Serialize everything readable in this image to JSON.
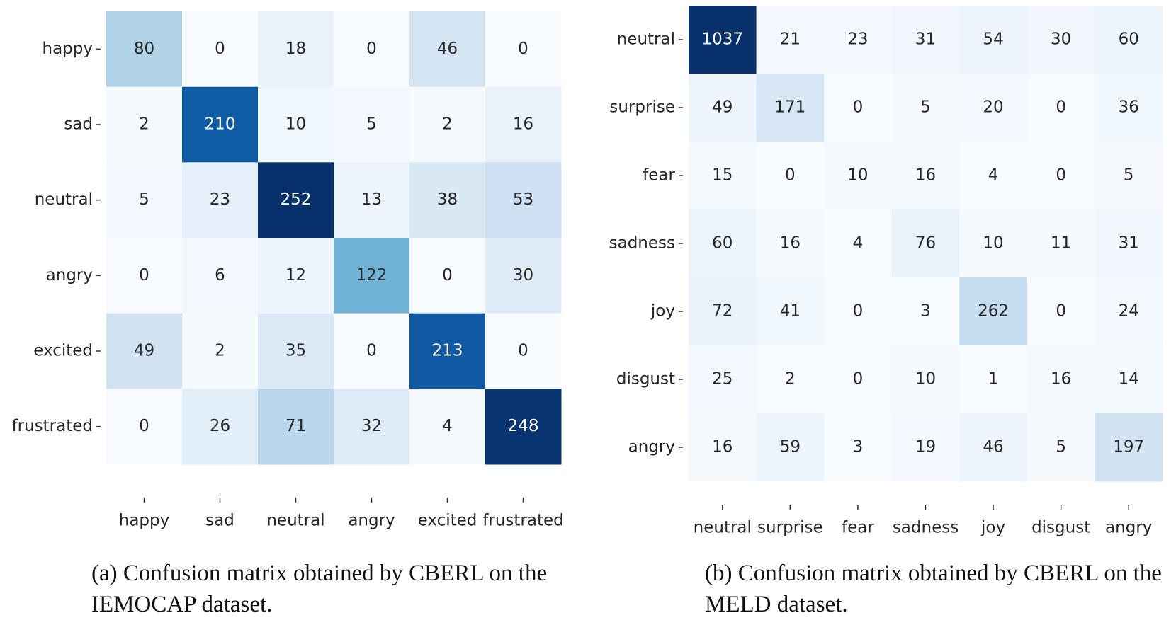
{
  "chart_data": [
    {
      "type": "heatmap",
      "cmap": "Blues",
      "caption": "(a) Confusion matrix obtained by CBERL on the IEMOCAP dataset.",
      "rows": [
        "happy",
        "sad",
        "neutral",
        "angry",
        "excited",
        "frustrated"
      ],
      "columns": [
        "happy",
        "sad",
        "neutral",
        "angry",
        "excited",
        "frustrated"
      ],
      "values": [
        [
          80,
          0,
          18,
          0,
          46,
          0
        ],
        [
          2,
          210,
          10,
          5,
          2,
          16
        ],
        [
          5,
          23,
          252,
          13,
          38,
          53
        ],
        [
          0,
          6,
          12,
          122,
          0,
          30
        ],
        [
          49,
          2,
          35,
          0,
          213,
          0
        ],
        [
          0,
          26,
          71,
          32,
          4,
          248
        ]
      ]
    },
    {
      "type": "heatmap",
      "cmap": "Blues",
      "caption": "(b) Confusion matrix obtained by CBERL on the MELD dataset.",
      "rows": [
        "neutral",
        "surprise",
        "fear",
        "sadness",
        "joy",
        "disgust",
        "angry"
      ],
      "columns": [
        "neutral",
        "surprise",
        "fear",
        "sadness",
        "joy",
        "disgust",
        "angry"
      ],
      "values": [
        [
          1037,
          21,
          23,
          31,
          54,
          30,
          60
        ],
        [
          49,
          171,
          0,
          5,
          20,
          0,
          36
        ],
        [
          15,
          0,
          10,
          16,
          4,
          0,
          5
        ],
        [
          60,
          16,
          4,
          76,
          10,
          11,
          31
        ],
        [
          72,
          41,
          0,
          3,
          262,
          0,
          24
        ],
        [
          25,
          2,
          0,
          10,
          1,
          16,
          14
        ],
        [
          16,
          59,
          3,
          19,
          46,
          5,
          197
        ]
      ]
    }
  ]
}
